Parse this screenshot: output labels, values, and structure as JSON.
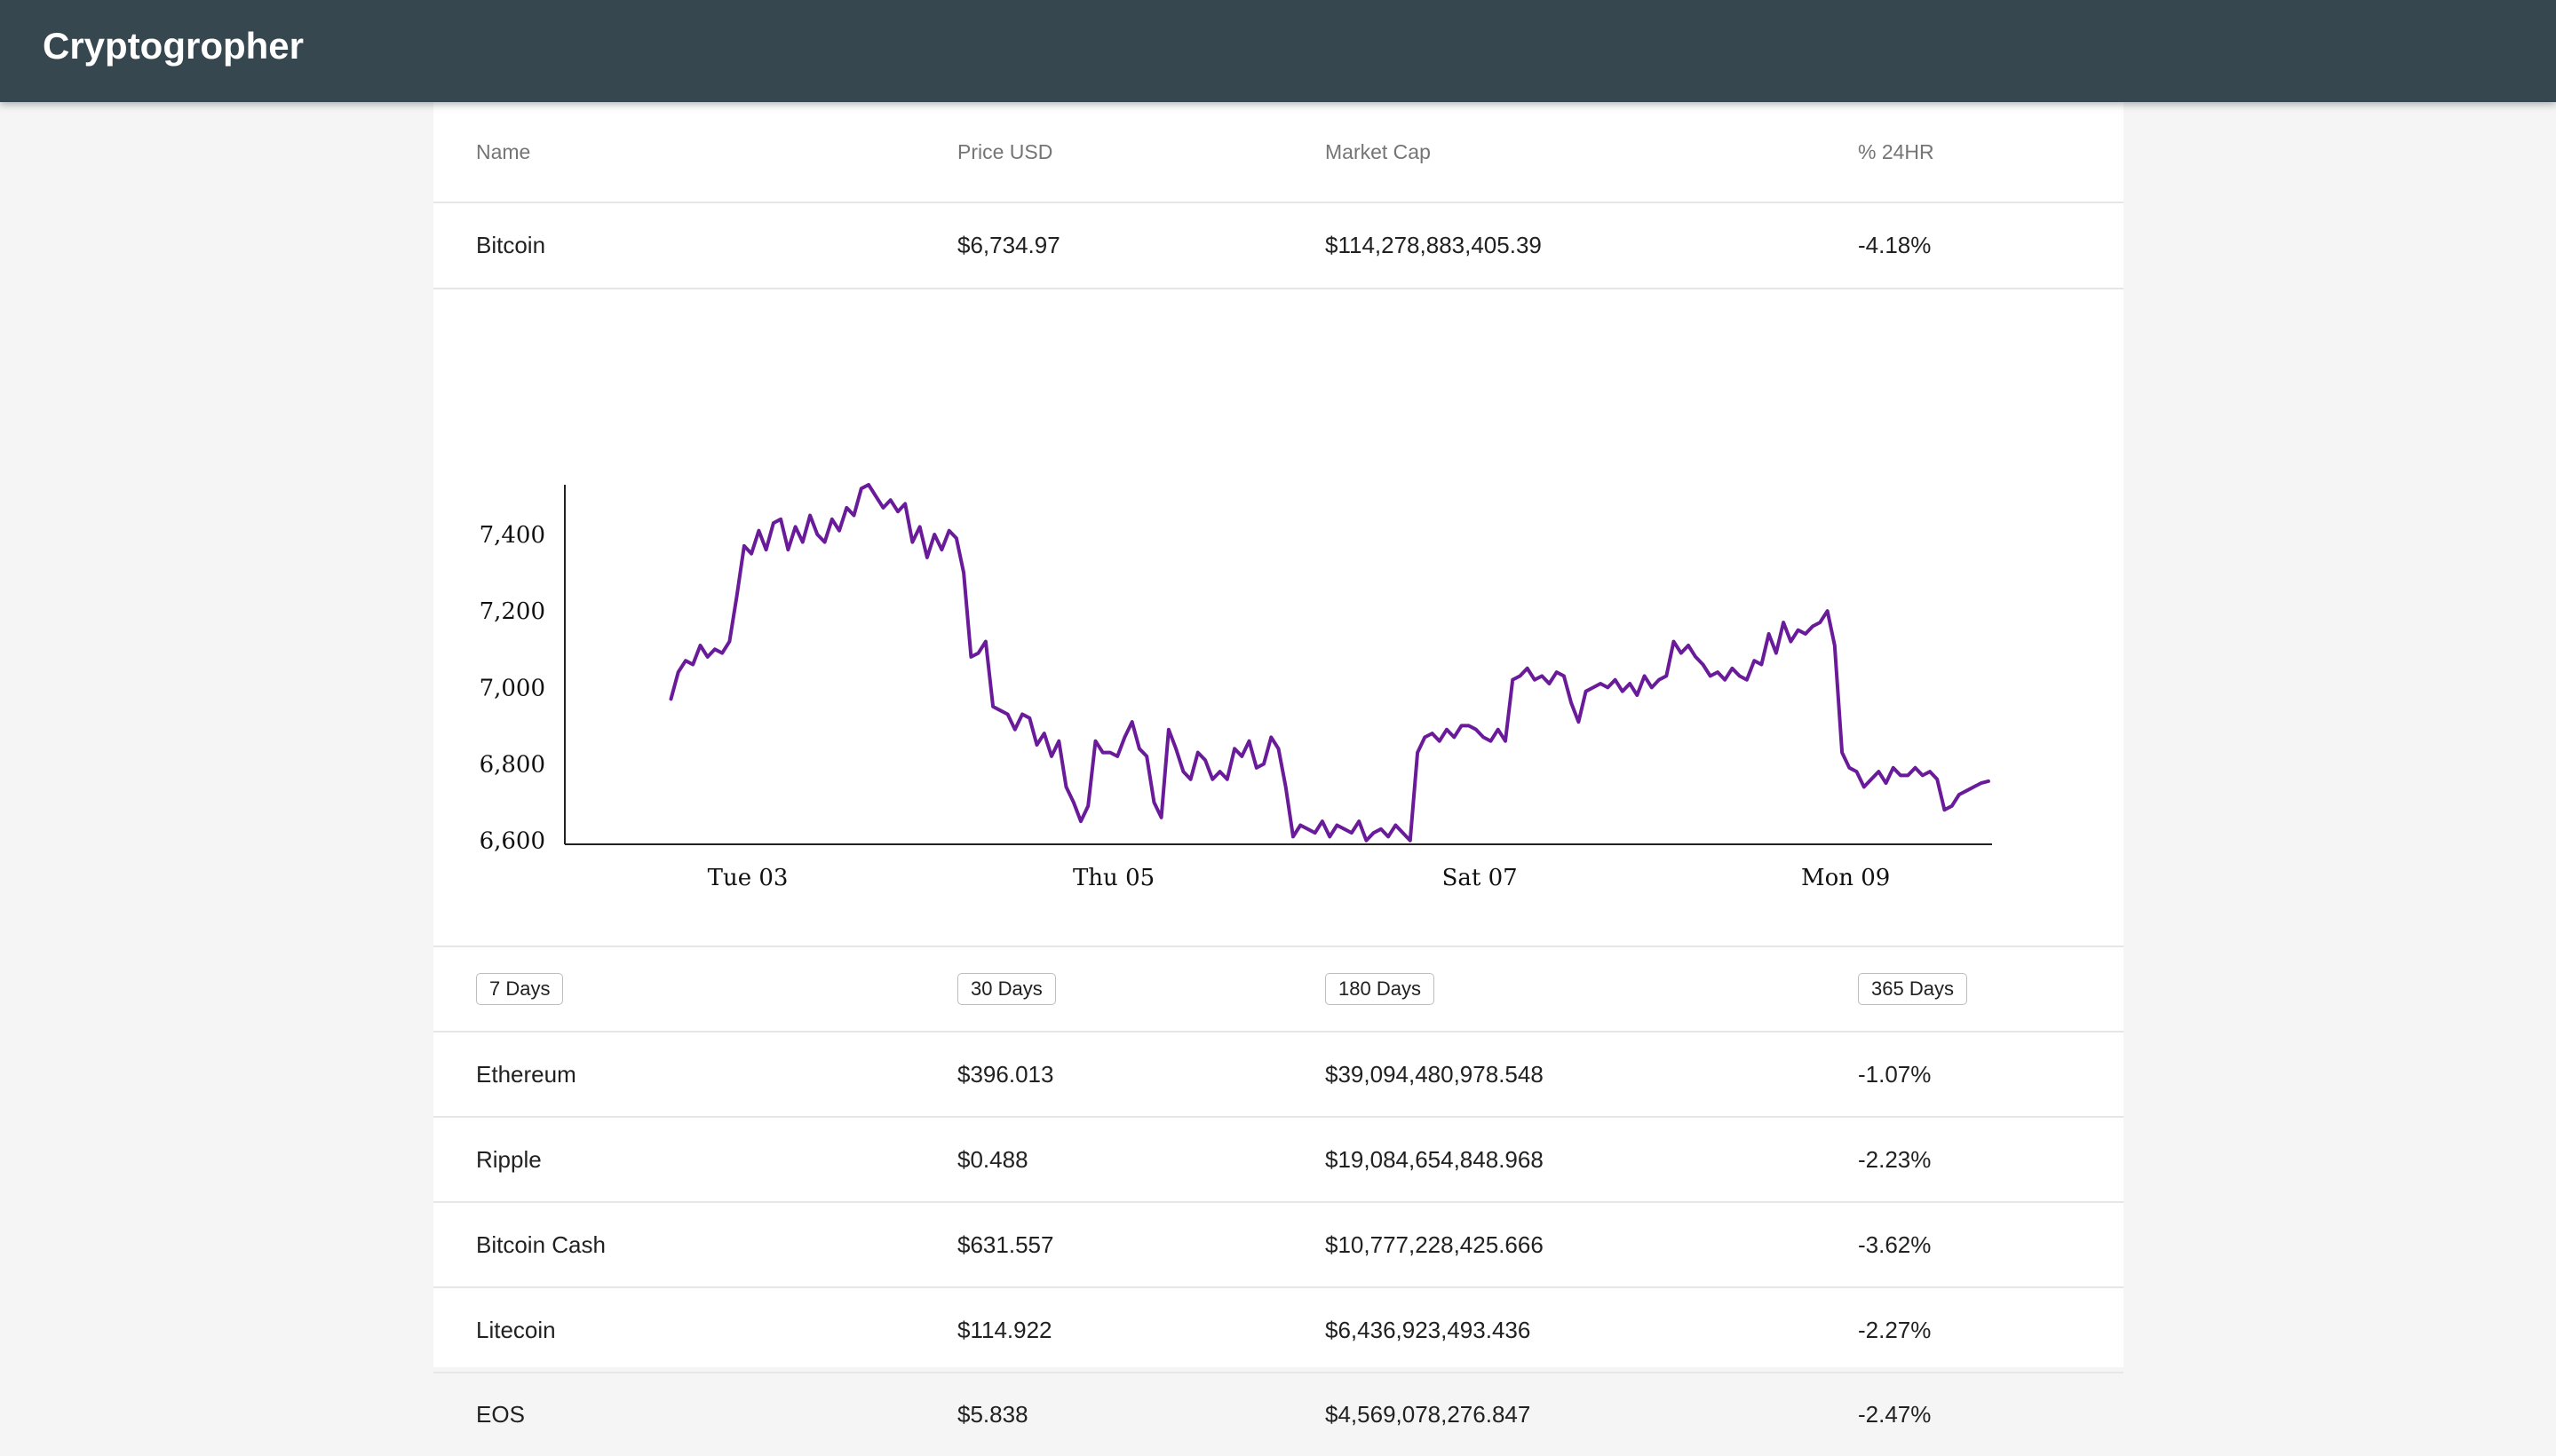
{
  "app": {
    "title": "Cryptogropher"
  },
  "table": {
    "headers": {
      "name": "Name",
      "price": "Price USD",
      "market_cap": "Market Cap",
      "change": "% 24HR"
    },
    "selected": {
      "name": "Bitcoin",
      "price": "$6,734.97",
      "market_cap": "$114,278,883,405.39",
      "change": "-4.18%"
    },
    "rows": [
      {
        "name": "Ethereum",
        "price": "$396.013",
        "market_cap": "$39,094,480,978.548",
        "change": "-1.07%"
      },
      {
        "name": "Ripple",
        "price": "$0.488",
        "market_cap": "$19,084,654,848.968",
        "change": "-2.23%"
      },
      {
        "name": "Bitcoin Cash",
        "price": "$631.557",
        "market_cap": "$10,777,228,425.666",
        "change": "-3.62%"
      },
      {
        "name": "Litecoin",
        "price": "$114.922",
        "market_cap": "$6,436,923,493.436",
        "change": "-2.27%"
      },
      {
        "name": "EOS",
        "price": "$5.838",
        "market_cap": "$4,569,078,276.847",
        "change": "-2.47%"
      }
    ]
  },
  "ranges": {
    "d7": "7 Days",
    "d30": "30 Days",
    "d180": "180 Days",
    "d365": "365 Days"
  },
  "chart_data": {
    "type": "line",
    "title": "",
    "xlabel": "",
    "ylabel": "",
    "color": "#6a1b9a",
    "grid": false,
    "xlim": [
      2.0,
      9.8
    ],
    "ylim": [
      6590,
      7530
    ],
    "x_ticks": [
      {
        "x": 3,
        "label": "Tue 03"
      },
      {
        "x": 5,
        "label": "Thu 05"
      },
      {
        "x": 7,
        "label": "Sat 07"
      },
      {
        "x": 9,
        "label": "Mon 09"
      }
    ],
    "y_ticks": [
      6600,
      6800,
      7000,
      7200,
      7400
    ],
    "series": [
      {
        "x": [
          2.58,
          2.62,
          2.66,
          2.7,
          2.74,
          2.78,
          2.82,
          2.86,
          2.9,
          2.94,
          2.98,
          3.02,
          3.06,
          3.1,
          3.14,
          3.18,
          3.22,
          3.26,
          3.3,
          3.34,
          3.38,
          3.42,
          3.46,
          3.5,
          3.54,
          3.58,
          3.62,
          3.66,
          3.7,
          3.74,
          3.78,
          3.82,
          3.86,
          3.9,
          3.94,
          3.98,
          4.02,
          4.06,
          4.1,
          4.14,
          4.18,
          4.22,
          4.26,
          4.3,
          4.34,
          4.38,
          4.42,
          4.46,
          4.5,
          4.54,
          4.58,
          4.62,
          4.66,
          4.7,
          4.74,
          4.78,
          4.82,
          4.86,
          4.9,
          4.94,
          4.98,
          5.02,
          5.06,
          5.1,
          5.14,
          5.18,
          5.22,
          5.26,
          5.3,
          5.34,
          5.38,
          5.42,
          5.46,
          5.5,
          5.54,
          5.58,
          5.62,
          5.66,
          5.7,
          5.74,
          5.78,
          5.82,
          5.86,
          5.9,
          5.94,
          5.98,
          6.02,
          6.06,
          6.1,
          6.14,
          6.18,
          6.22,
          6.26,
          6.3,
          6.34,
          6.38,
          6.42,
          6.46,
          6.5,
          6.54,
          6.58,
          6.62,
          6.66,
          6.7,
          6.74,
          6.78,
          6.82,
          6.86,
          6.9,
          6.94,
          6.98,
          7.02,
          7.06,
          7.1,
          7.14,
          7.18,
          7.22,
          7.26,
          7.3,
          7.34,
          7.38,
          7.42,
          7.46,
          7.5,
          7.54,
          7.58,
          7.62,
          7.66,
          7.7,
          7.74,
          7.78,
          7.82,
          7.86,
          7.9,
          7.94,
          7.98,
          8.02,
          8.06,
          8.1,
          8.14,
          8.18,
          8.22,
          8.26,
          8.3,
          8.34,
          8.38,
          8.42,
          8.46,
          8.5,
          8.54,
          8.58,
          8.62,
          8.66,
          8.7,
          8.74,
          8.78,
          8.82,
          8.86,
          8.9,
          8.94,
          8.98,
          9.02,
          9.06,
          9.1,
          9.14,
          9.18,
          9.22,
          9.26,
          9.3,
          9.34,
          9.38,
          9.42,
          9.46,
          9.5,
          9.54,
          9.58,
          9.62,
          9.66,
          9.7,
          9.74,
          9.78
        ],
        "values": [
          6970,
          7040,
          7070,
          7060,
          7110,
          7080,
          7100,
          7090,
          7120,
          7240,
          7370,
          7350,
          7410,
          7360,
          7430,
          7440,
          7360,
          7420,
          7380,
          7450,
          7400,
          7380,
          7440,
          7410,
          7470,
          7450,
          7520,
          7530,
          7500,
          7470,
          7490,
          7460,
          7480,
          7380,
          7420,
          7340,
          7400,
          7360,
          7410,
          7390,
          7300,
          7080,
          7090,
          7120,
          6950,
          6940,
          6930,
          6890,
          6930,
          6920,
          6850,
          6880,
          6820,
          6860,
          6740,
          6700,
          6650,
          6690,
          6860,
          6830,
          6830,
          6820,
          6870,
          6910,
          6840,
          6820,
          6700,
          6660,
          6890,
          6840,
          6780,
          6760,
          6830,
          6810,
          6760,
          6780,
          6760,
          6840,
          6820,
          6860,
          6790,
          6800,
          6870,
          6840,
          6740,
          6610,
          6640,
          6630,
          6620,
          6650,
          6610,
          6640,
          6630,
          6620,
          6650,
          6600,
          6620,
          6630,
          6610,
          6640,
          6620,
          6600,
          6830,
          6870,
          6880,
          6860,
          6890,
          6870,
          6900,
          6900,
          6890,
          6870,
          6860,
          6890,
          6860,
          7020,
          7030,
          7050,
          7020,
          7030,
          7010,
          7040,
          7030,
          6960,
          6910,
          6990,
          7000,
          7010,
          7000,
          7020,
          6990,
          7010,
          6980,
          7030,
          7000,
          7020,
          7030,
          7120,
          7090,
          7110,
          7080,
          7060,
          7030,
          7040,
          7020,
          7050,
          7030,
          7020,
          7070,
          7060,
          7140,
          7090,
          7170,
          7120,
          7150,
          7140,
          7160,
          7170,
          7200,
          7110,
          6830,
          6790,
          6780,
          6740,
          6760,
          6780,
          6750,
          6790,
          6770,
          6770,
          6790,
          6770,
          6780,
          6760,
          6680,
          6690,
          6720,
          6730,
          6740,
          6750,
          6755
        ]
      }
    ]
  }
}
